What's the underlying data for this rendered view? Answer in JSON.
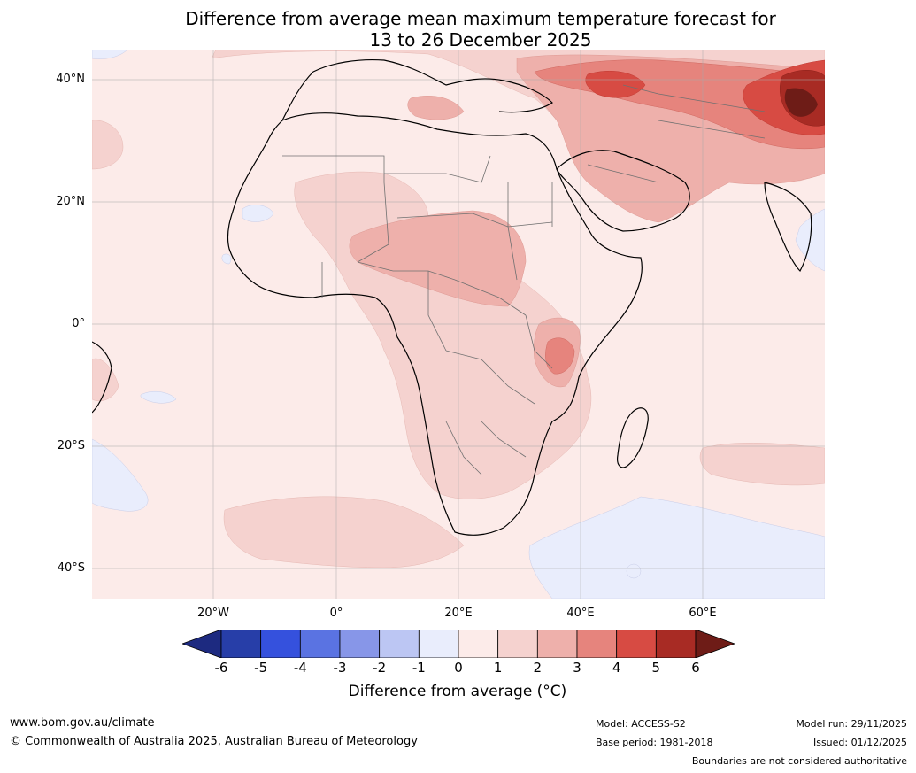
{
  "title": {
    "line1": "Difference from average mean maximum temperature forecast for",
    "line2": "13 to 26 December 2025"
  },
  "lat_labels": [
    "40°N",
    "20°N",
    "0°",
    "20°S",
    "40°S"
  ],
  "lon_labels": [
    "20°W",
    "0°",
    "20°E",
    "40°E",
    "60°E"
  ],
  "colorbar": {
    "ticks": [
      "-6",
      "-5",
      "-4",
      "-3",
      "-2",
      "-1",
      "0",
      "1",
      "2",
      "3",
      "4",
      "5",
      "6"
    ],
    "colors": [
      "#1d2a80",
      "#273ea8",
      "#3551dd",
      "#5a73e2",
      "#8796e8",
      "#bcc6f3",
      "#e9edfc",
      "#fcebe9",
      "#f5d2cf",
      "#eeb0ab",
      "#e6847d",
      "#d74b43",
      "#a82b24",
      "#6e1c17"
    ],
    "label": "Difference from average (°C)"
  },
  "footer": {
    "website": "www.bom.gov.au/climate",
    "copyright": "© Commonwealth of Australia 2025, Australian Bureau of Meteorology",
    "model": "Model: ACCESS-S2",
    "base_period": "Base period: 1981-2018",
    "model_run": "Model run: 29/11/2025",
    "issued": "Issued: 01/12/2025",
    "disclaimer": "Boundaries are not considered authoritative"
  }
}
